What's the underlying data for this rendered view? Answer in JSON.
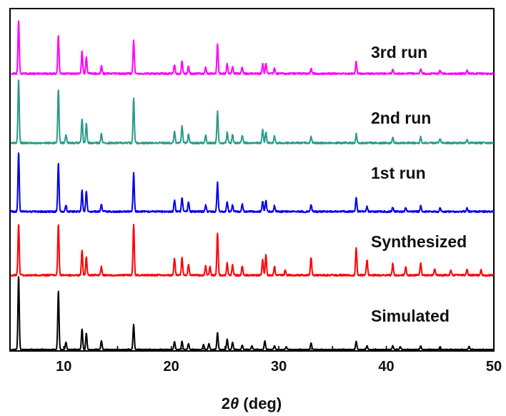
{
  "chart_data": {
    "type": "line",
    "title": "",
    "xlabel": {
      "prefix": "2",
      "symbol": "θ",
      "suffix": " (deg)"
    },
    "ylabel": "",
    "xlim": [
      5,
      50
    ],
    "x_ticks": [
      10,
      20,
      30,
      40,
      50
    ],
    "y_ticks_shown": false,
    "grid": false,
    "legend": "none",
    "series": [
      {
        "name": "Simulated",
        "color": "#000000",
        "peaks": [
          [
            5.8,
            100
          ],
          [
            9.5,
            80
          ],
          [
            10.2,
            10
          ],
          [
            11.7,
            28
          ],
          [
            12.1,
            22
          ],
          [
            13.5,
            12
          ],
          [
            16.5,
            34
          ],
          [
            20.3,
            11
          ],
          [
            21.0,
            11
          ],
          [
            21.6,
            8
          ],
          [
            23.0,
            7
          ],
          [
            23.5,
            8
          ],
          [
            24.3,
            23
          ],
          [
            25.2,
            14
          ],
          [
            25.7,
            10
          ],
          [
            26.6,
            6
          ],
          [
            27.5,
            5
          ],
          [
            28.7,
            12
          ],
          [
            29.6,
            5
          ],
          [
            30.7,
            4
          ],
          [
            33.0,
            9
          ],
          [
            37.2,
            11
          ],
          [
            38.2,
            5
          ],
          [
            40.6,
            5
          ],
          [
            41.3,
            4
          ],
          [
            43.2,
            5
          ],
          [
            45.0,
            4
          ],
          [
            47.7,
            4
          ]
        ]
      },
      {
        "name": "Synthesized",
        "color": "#ff0000",
        "peaks": [
          [
            5.8,
            100
          ],
          [
            9.5,
            100
          ],
          [
            11.7,
            48
          ],
          [
            12.1,
            36
          ],
          [
            13.5,
            17
          ],
          [
            16.5,
            100
          ],
          [
            20.3,
            33
          ],
          [
            21.0,
            34
          ],
          [
            21.6,
            22
          ],
          [
            23.2,
            18
          ],
          [
            23.6,
            16
          ],
          [
            24.3,
            83
          ],
          [
            25.2,
            24
          ],
          [
            25.7,
            20
          ],
          [
            26.6,
            19
          ],
          [
            28.5,
            30
          ],
          [
            28.8,
            39
          ],
          [
            29.6,
            17
          ],
          [
            30.6,
            10
          ],
          [
            33.0,
            35
          ],
          [
            37.2,
            52
          ],
          [
            38.2,
            30
          ],
          [
            40.6,
            22
          ],
          [
            41.8,
            16
          ],
          [
            43.2,
            24
          ],
          [
            44.5,
            12
          ],
          [
            46.0,
            10
          ],
          [
            47.5,
            12
          ],
          [
            48.8,
            10
          ]
        ]
      },
      {
        "name": "1st run",
        "color": "#0000ee",
        "peaks": [
          [
            5.8,
            100
          ],
          [
            9.5,
            83
          ],
          [
            10.2,
            10
          ],
          [
            11.7,
            35
          ],
          [
            12.1,
            35
          ],
          [
            13.5,
            12
          ],
          [
            16.5,
            65
          ],
          [
            20.3,
            20
          ],
          [
            21.0,
            24
          ],
          [
            21.6,
            16
          ],
          [
            23.2,
            11
          ],
          [
            24.3,
            49
          ],
          [
            25.2,
            16
          ],
          [
            25.7,
            11
          ],
          [
            26.6,
            12
          ],
          [
            28.5,
            18
          ],
          [
            28.8,
            19
          ],
          [
            29.6,
            10
          ],
          [
            33.0,
            12
          ],
          [
            37.2,
            23
          ],
          [
            38.2,
            8
          ],
          [
            40.6,
            7
          ],
          [
            41.8,
            6
          ],
          [
            43.2,
            9
          ],
          [
            45.0,
            6
          ],
          [
            47.5,
            6
          ]
        ]
      },
      {
        "name": "2nd run",
        "color": "#2a9a8a",
        "peaks": [
          [
            5.8,
            100
          ],
          [
            9.5,
            85
          ],
          [
            10.2,
            12
          ],
          [
            11.7,
            38
          ],
          [
            12.1,
            30
          ],
          [
            13.5,
            14
          ],
          [
            16.5,
            70
          ],
          [
            20.3,
            18
          ],
          [
            21.0,
            27
          ],
          [
            21.6,
            14
          ],
          [
            23.2,
            12
          ],
          [
            24.3,
            50
          ],
          [
            25.2,
            16
          ],
          [
            25.7,
            13
          ],
          [
            26.6,
            12
          ],
          [
            28.5,
            21
          ],
          [
            28.8,
            18
          ],
          [
            29.6,
            11
          ],
          [
            33.0,
            10
          ],
          [
            37.2,
            14
          ],
          [
            40.6,
            8
          ],
          [
            43.2,
            9
          ],
          [
            45.0,
            6
          ],
          [
            47.5,
            6
          ]
        ]
      },
      {
        "name": "3rd run",
        "color": "#ff00ff",
        "peaks": [
          [
            5.8,
            100
          ],
          [
            9.5,
            72
          ],
          [
            11.7,
            41
          ],
          [
            12.1,
            31
          ],
          [
            13.5,
            15
          ],
          [
            16.5,
            62
          ],
          [
            20.3,
            17
          ],
          [
            21.0,
            24
          ],
          [
            21.6,
            14
          ],
          [
            23.2,
            12
          ],
          [
            24.3,
            55
          ],
          [
            25.2,
            18
          ],
          [
            25.7,
            13
          ],
          [
            26.6,
            12
          ],
          [
            28.5,
            18
          ],
          [
            28.8,
            20
          ],
          [
            29.6,
            11
          ],
          [
            33.0,
            10
          ],
          [
            37.2,
            22
          ],
          [
            40.6,
            8
          ],
          [
            43.2,
            8
          ],
          [
            45.0,
            6
          ],
          [
            47.5,
            6
          ]
        ]
      }
    ]
  }
}
